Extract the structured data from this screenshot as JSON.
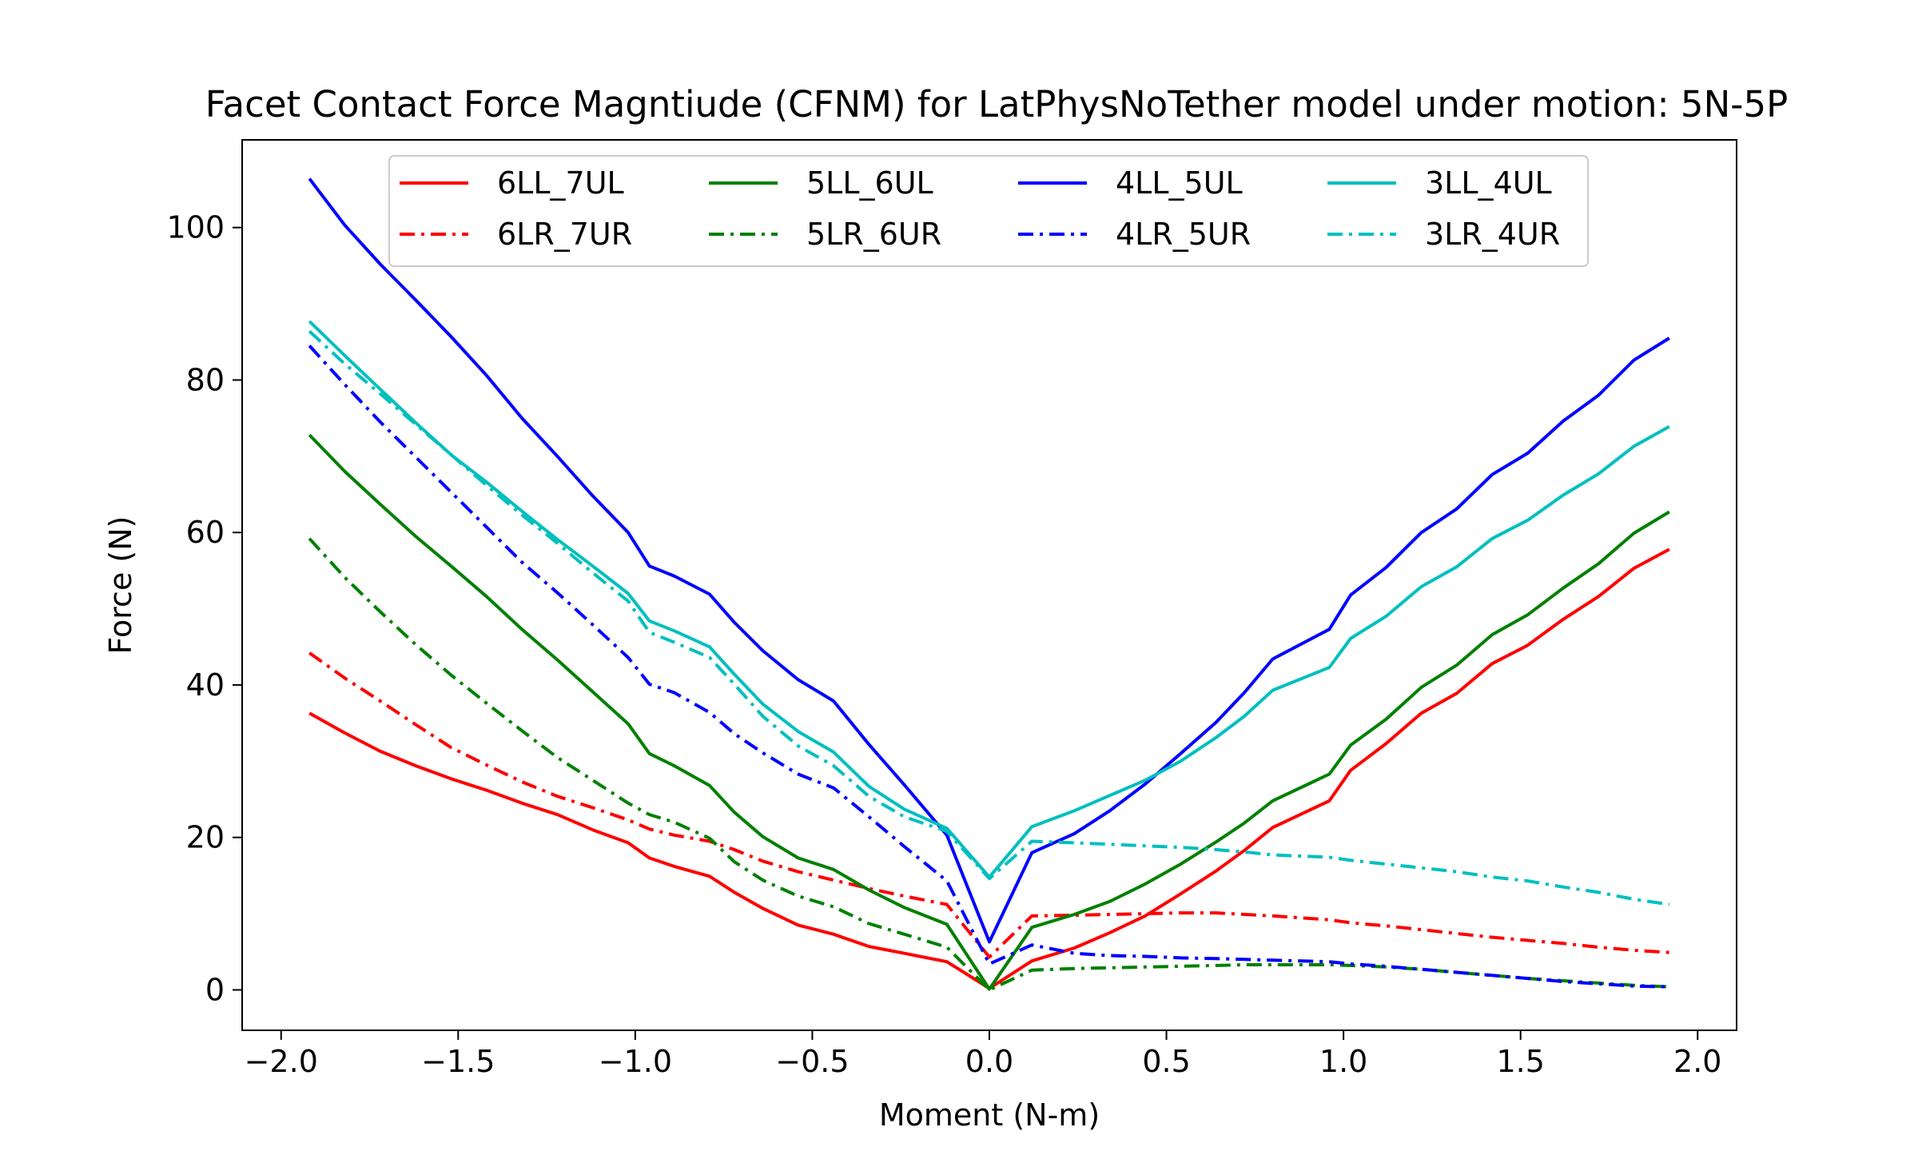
{
  "chart_data": {
    "type": "line",
    "title": "Facet Contact Force Magntiude (CFNM) for LatPhysNoTether model under motion: 5N-5P",
    "xlabel": "Moment (N-m)",
    "ylabel": "Force (N)",
    "xlim": [
      -2.11,
      2.11
    ],
    "ylim": [
      -5.3,
      111.5
    ],
    "xticks": [
      -2.0,
      -1.5,
      -1.0,
      -0.5,
      0.0,
      0.5,
      1.0,
      1.5,
      2.0
    ],
    "xtick_labels": [
      "−2.0",
      "−1.5",
      "−1.0",
      "−0.5",
      "0.0",
      "0.5",
      "1.0",
      "1.5",
      "2.0"
    ],
    "yticks": [
      0,
      20,
      40,
      60,
      80,
      100
    ],
    "ytick_labels": [
      "0",
      "20",
      "40",
      "60",
      "80",
      "100"
    ],
    "grid": false,
    "legend": {
      "placement": "upper center",
      "columns": 4
    },
    "x": [
      -1.92,
      -1.82,
      -1.72,
      -1.62,
      -1.52,
      -1.42,
      -1.32,
      -1.22,
      -1.12,
      -1.02,
      -0.96,
      -0.89,
      -0.79,
      -0.72,
      -0.64,
      -0.54,
      -0.44,
      -0.34,
      -0.24,
      -0.12,
      0.0,
      0.12,
      0.24,
      0.34,
      0.44,
      0.54,
      0.64,
      0.72,
      0.8,
      0.96,
      1.02,
      1.12,
      1.22,
      1.32,
      1.42,
      1.52,
      1.62,
      1.72,
      1.82,
      1.92
    ],
    "series": [
      {
        "name": "6LL_7UL",
        "color": "#ff0000",
        "style": "solid",
        "values": [
          36.3,
          33.7,
          31.3,
          29.4,
          27.7,
          26.2,
          24.5,
          23.0,
          21.0,
          19.3,
          17.3,
          16.2,
          14.9,
          12.8,
          10.7,
          8.5,
          7.3,
          5.7,
          4.8,
          3.7,
          0.2,
          3.8,
          5.5,
          7.5,
          9.7,
          12.6,
          15.6,
          18.3,
          21.3,
          24.8,
          28.8,
          32.3,
          36.3,
          38.9,
          42.8,
          45.2,
          48.6,
          51.6,
          55.3,
          57.8
        ]
      },
      {
        "name": "6LR_7UR",
        "color": "#ff0000",
        "style": "dashdot",
        "values": [
          44.2,
          40.9,
          37.9,
          34.8,
          31.8,
          29.5,
          27.3,
          25.4,
          23.9,
          22.3,
          21.1,
          20.3,
          19.5,
          18.4,
          16.9,
          15.5,
          14.4,
          13.3,
          12.3,
          11.2,
          4.3,
          9.7,
          9.8,
          9.9,
          10.0,
          10.1,
          10.1,
          9.9,
          9.7,
          9.2,
          8.8,
          8.4,
          7.9,
          7.4,
          6.9,
          6.5,
          6.1,
          5.6,
          5.2,
          4.9
        ]
      },
      {
        "name": "5LL_6UL",
        "color": "#008000",
        "style": "solid",
        "values": [
          72.8,
          68.0,
          63.7,
          59.5,
          55.6,
          51.6,
          47.3,
          43.3,
          39.1,
          34.9,
          31.0,
          29.4,
          26.8,
          23.3,
          20.1,
          17.3,
          15.8,
          13.1,
          10.8,
          8.6,
          0.1,
          8.2,
          9.9,
          11.6,
          13.9,
          16.5,
          19.4,
          21.9,
          24.8,
          28.3,
          32.1,
          35.5,
          39.7,
          42.6,
          46.6,
          49.2,
          52.7,
          55.9,
          59.9,
          62.7
        ]
      },
      {
        "name": "5LR_6UR",
        "color": "#008000",
        "style": "dashdot",
        "values": [
          59.2,
          54.1,
          49.6,
          45.3,
          41.3,
          37.6,
          34.0,
          30.5,
          27.5,
          24.5,
          23.0,
          22.0,
          19.9,
          16.8,
          14.4,
          12.3,
          10.9,
          8.7,
          7.3,
          5.6,
          0.0,
          2.6,
          2.8,
          2.9,
          3.0,
          3.1,
          3.2,
          3.3,
          3.3,
          3.3,
          3.2,
          3.0,
          2.7,
          2.3,
          1.9,
          1.5,
          1.2,
          0.9,
          0.6,
          0.4
        ]
      },
      {
        "name": "4LL_5UL",
        "color": "#0000ff",
        "style": "solid",
        "values": [
          106.4,
          100.3,
          95.2,
          90.5,
          85.7,
          80.6,
          75.0,
          70.0,
          64.8,
          60.0,
          55.6,
          54.3,
          51.9,
          48.2,
          44.5,
          40.7,
          37.9,
          32.2,
          26.9,
          20.3,
          6.3,
          18.0,
          20.5,
          23.5,
          27.0,
          31.0,
          35.1,
          39.0,
          43.4,
          47.3,
          51.8,
          55.4,
          60.0,
          63.1,
          67.6,
          70.4,
          74.6,
          78.0,
          82.6,
          85.5
        ]
      },
      {
        "name": "4LR_5UR",
        "color": "#0000ff",
        "style": "dashdot",
        "values": [
          84.5,
          79.4,
          74.5,
          69.9,
          65.3,
          60.7,
          56.1,
          52.1,
          47.9,
          43.6,
          40.1,
          39.0,
          36.4,
          33.6,
          31.1,
          28.3,
          26.5,
          22.7,
          18.8,
          14.3,
          3.4,
          5.9,
          4.8,
          4.5,
          4.4,
          4.2,
          4.1,
          4.0,
          3.9,
          3.7,
          3.4,
          3.1,
          2.7,
          2.3,
          1.9,
          1.5,
          1.1,
          0.8,
          0.5,
          0.4
        ]
      },
      {
        "name": "3LL_4UL",
        "color": "#00bfbf",
        "style": "solid",
        "values": [
          87.7,
          83.2,
          78.8,
          74.4,
          70.2,
          66.6,
          62.8,
          59.1,
          55.6,
          52.0,
          48.4,
          47.1,
          45.0,
          41.4,
          37.5,
          33.9,
          31.2,
          26.7,
          23.7,
          21.2,
          14.8,
          21.4,
          23.5,
          25.5,
          27.5,
          30.0,
          33.1,
          35.9,
          39.3,
          42.3,
          46.1,
          49.0,
          52.9,
          55.5,
          59.2,
          61.6,
          64.9,
          67.7,
          71.3,
          73.9
        ]
      },
      {
        "name": "3LR_4UR",
        "color": "#00bfbf",
        "style": "dashdot",
        "values": [
          86.4,
          82.1,
          78.2,
          74.2,
          70.2,
          66.2,
          62.3,
          58.6,
          54.7,
          51.0,
          46.9,
          45.6,
          43.6,
          40.1,
          35.9,
          32.0,
          29.4,
          25.4,
          22.7,
          20.8,
          14.6,
          19.5,
          19.3,
          19.1,
          18.9,
          18.7,
          18.4,
          18.1,
          17.7,
          17.4,
          17.0,
          16.5,
          16.0,
          15.5,
          14.8,
          14.3,
          13.5,
          12.8,
          11.9,
          11.2
        ]
      }
    ]
  }
}
